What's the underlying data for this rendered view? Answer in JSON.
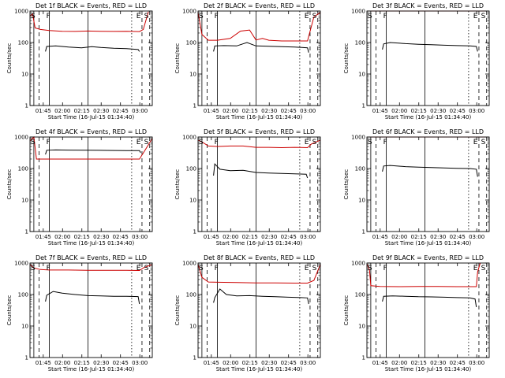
{
  "figure": {
    "ylabel": "Counts/sec",
    "xlabel": "Start Time (16-Jul-15 01:34:40)",
    "xticks": [
      "01:45",
      "02:00",
      "02:15",
      "02:30",
      "02:45",
      "03:00"
    ],
    "yticks": [
      "1",
      "10",
      "100",
      "1000"
    ],
    "marker_labels": [
      "S",
      "F",
      "E",
      "S"
    ],
    "colors": {
      "events": "#000000",
      "lld": "#cc0000",
      "axes": "#000000",
      "background": "#ffffff"
    }
  },
  "chart_data": [
    {
      "type": "line",
      "title": "Det 1f BLACK = Events, RED = LLD",
      "xlabel": "Start Time (16-Jul-15 01:34:40)",
      "ylabel": "Counts/sec",
      "xunit": "minutes after 01:34:40",
      "xlim": [
        0,
        95
      ],
      "ylim": [
        1,
        1000
      ],
      "yscale": "log",
      "series": [
        {
          "name": "Events",
          "color": "black",
          "points": [
            [
              12,
              52
            ],
            [
              13,
              75
            ],
            [
              20,
              78
            ],
            [
              30,
              72
            ],
            [
              40,
              68
            ],
            [
              48,
              74
            ],
            [
              55,
              70
            ],
            [
              65,
              66
            ],
            [
              75,
              64
            ],
            [
              84,
              60
            ],
            [
              85,
              52
            ]
          ]
        },
        {
          "name": "LLD",
          "color": "red",
          "points": [
            [
              0,
              700
            ],
            [
              2,
              800
            ],
            [
              4,
              290
            ],
            [
              8,
              260
            ],
            [
              15,
              240
            ],
            [
              25,
              228
            ],
            [
              35,
              225
            ],
            [
              45,
              232
            ],
            [
              55,
              228
            ],
            [
              65,
              225
            ],
            [
              75,
              228
            ],
            [
              85,
              222
            ],
            [
              88,
              260
            ],
            [
              92,
              950
            ]
          ]
        }
      ]
    },
    {
      "type": "line",
      "title": "Det 2f BLACK = Events, RED = LLD",
      "xlabel": "Start Time (16-Jul-15 01:34:40)",
      "ylabel": "Counts/sec",
      "xunit": "minutes after 01:34:40",
      "xlim": [
        0,
        95
      ],
      "ylim": [
        1,
        1000
      ],
      "yscale": "log",
      "series": [
        {
          "name": "Events",
          "color": "black",
          "points": [
            [
              12,
              52
            ],
            [
              13,
              78
            ],
            [
              20,
              80
            ],
            [
              30,
              78
            ],
            [
              38,
              100
            ],
            [
              45,
              78
            ],
            [
              55,
              76
            ],
            [
              65,
              74
            ],
            [
              75,
              72
            ],
            [
              85,
              68
            ],
            [
              86,
              48
            ]
          ]
        },
        {
          "name": "LLD",
          "color": "red",
          "points": [
            [
              0,
              900
            ],
            [
              3,
              180
            ],
            [
              8,
              118
            ],
            [
              15,
              118
            ],
            [
              25,
              135
            ],
            [
              33,
              230
            ],
            [
              40,
              250
            ],
            [
              45,
              120
            ],
            [
              50,
              135
            ],
            [
              55,
              118
            ],
            [
              65,
              112
            ],
            [
              75,
              112
            ],
            [
              85,
              112
            ],
            [
              90,
              650
            ],
            [
              95,
              900
            ]
          ]
        }
      ]
    },
    {
      "type": "line",
      "title": "Det 3f BLACK = Events, RED = LLD",
      "xlabel": "Start Time (16-Jul-15 01:34:40)",
      "ylabel": "Counts/sec",
      "xunit": "minutes after 01:34:40",
      "xlim": [
        0,
        95
      ],
      "ylim": [
        1,
        1000
      ],
      "yscale": "log",
      "series": [
        {
          "name": "Events",
          "color": "black",
          "points": [
            [
              12,
              60
            ],
            [
              13,
              90
            ],
            [
              18,
              100
            ],
            [
              30,
              92
            ],
            [
              40,
              88
            ],
            [
              50,
              85
            ],
            [
              60,
              82
            ],
            [
              70,
              80
            ],
            [
              80,
              78
            ],
            [
              85,
              75
            ],
            [
              86,
              52
            ]
          ]
        },
        {
          "name": "LLD",
          "color": "red",
          "points": [
            [
              0,
              1000
            ],
            [
              95,
              1000
            ]
          ]
        }
      ]
    },
    {
      "type": "line",
      "title": "Det 4f BLACK = Events, RED = LLD",
      "xlabel": "Start Time (16-Jul-15 01:34:40)",
      "ylabel": "Counts/sec",
      "xunit": "minutes after 01:34:40",
      "xlim": [
        0,
        95
      ],
      "ylim": [
        1,
        1000
      ],
      "yscale": "log",
      "series": [
        {
          "name": "Events",
          "color": "black",
          "points": [
            [
              12,
              280
            ],
            [
              13,
              380
            ],
            [
              20,
              390
            ],
            [
              30,
              385
            ],
            [
              45,
              380
            ],
            [
              60,
              375
            ],
            [
              75,
              372
            ],
            [
              85,
              370
            ],
            [
              86,
              320
            ]
          ]
        },
        {
          "name": "LLD",
          "color": "red",
          "points": [
            [
              0,
              750
            ],
            [
              3,
              1000
            ],
            [
              5,
              200
            ],
            [
              15,
              200
            ],
            [
              30,
              200
            ],
            [
              45,
              200
            ],
            [
              60,
              200
            ],
            [
              75,
              200
            ],
            [
              85,
              200
            ],
            [
              90,
              420
            ],
            [
              95,
              900
            ]
          ]
        }
      ]
    },
    {
      "type": "line",
      "title": "Det 5f BLACK = Events, RED = LLD",
      "xlabel": "Start Time (16-Jul-15 01:34:40)",
      "ylabel": "Counts/sec",
      "xunit": "minutes after 01:34:40",
      "xlim": [
        0,
        95
      ],
      "ylim": [
        1,
        1000
      ],
      "yscale": "log",
      "series": [
        {
          "name": "Events",
          "color": "black",
          "points": [
            [
              12,
              60
            ],
            [
              13,
              140
            ],
            [
              17,
              95
            ],
            [
              25,
              85
            ],
            [
              35,
              88
            ],
            [
              45,
              75
            ],
            [
              55,
              72
            ],
            [
              65,
              70
            ],
            [
              75,
              68
            ],
            [
              84,
              66
            ],
            [
              85,
              50
            ]
          ]
        },
        {
          "name": "LLD",
          "color": "red",
          "points": [
            [
              0,
              800
            ],
            [
              3,
              700
            ],
            [
              8,
              520
            ],
            [
              15,
              500
            ],
            [
              25,
              520
            ],
            [
              35,
              520
            ],
            [
              45,
              470
            ],
            [
              55,
              470
            ],
            [
              65,
              460
            ],
            [
              75,
              470
            ],
            [
              85,
              460
            ],
            [
              88,
              600
            ],
            [
              95,
              800
            ]
          ]
        }
      ]
    },
    {
      "type": "line",
      "title": "Det 6f BLACK = Events, RED = LLD",
      "xlabel": "Start Time (16-Jul-15 01:34:40)",
      "ylabel": "Counts/sec",
      "xunit": "minutes after 01:34:40",
      "xlim": [
        0,
        95
      ],
      "ylim": [
        1,
        1000
      ],
      "yscale": "log",
      "series": [
        {
          "name": "Events",
          "color": "black",
          "points": [
            [
              12,
              80
            ],
            [
              13,
              120
            ],
            [
              18,
              125
            ],
            [
              30,
              115
            ],
            [
              40,
              110
            ],
            [
              50,
              108
            ],
            [
              60,
              105
            ],
            [
              70,
              102
            ],
            [
              80,
              100
            ],
            [
              85,
              95
            ],
            [
              86,
              55
            ]
          ]
        },
        {
          "name": "LLD",
          "color": "red",
          "points": [
            [
              0,
              1000
            ],
            [
              95,
              1000
            ]
          ]
        }
      ]
    },
    {
      "type": "line",
      "title": "Det 7f BLACK = Events, RED = LLD",
      "xlabel": "Start Time (16-Jul-15 01:34:40)",
      "ylabel": "Counts/sec",
      "xunit": "minutes after 01:34:40",
      "xlim": [
        0,
        95
      ],
      "ylim": [
        1,
        1000
      ],
      "yscale": "log",
      "series": [
        {
          "name": "Events",
          "color": "black",
          "points": [
            [
              12,
              60
            ],
            [
              13,
              95
            ],
            [
              18,
              125
            ],
            [
              25,
              110
            ],
            [
              35,
              100
            ],
            [
              45,
              92
            ],
            [
              55,
              90
            ],
            [
              65,
              88
            ],
            [
              75,
              88
            ],
            [
              84,
              86
            ],
            [
              85,
              50
            ]
          ]
        },
        {
          "name": "LLD",
          "color": "red",
          "points": [
            [
              0,
              900
            ],
            [
              3,
              700
            ],
            [
              8,
              620
            ],
            [
              15,
              600
            ],
            [
              30,
              600
            ],
            [
              45,
              590
            ],
            [
              60,
              590
            ],
            [
              75,
              585
            ],
            [
              85,
              580
            ],
            [
              88,
              700
            ],
            [
              95,
              900
            ]
          ]
        }
      ]
    },
    {
      "type": "line",
      "title": "Det 8f BLACK = Events, RED = LLD",
      "xlabel": "Start Time (16-Jul-15 01:34:40)",
      "ylabel": "Counts/sec",
      "xunit": "minutes after 01:34:40",
      "xlim": [
        0,
        95
      ],
      "ylim": [
        1,
        1000
      ],
      "yscale": "log",
      "series": [
        {
          "name": "Events",
          "color": "black",
          "points": [
            [
              12,
              55
            ],
            [
              13,
              80
            ],
            [
              17,
              150
            ],
            [
              22,
              100
            ],
            [
              30,
              90
            ],
            [
              40,
              92
            ],
            [
              50,
              88
            ],
            [
              60,
              85
            ],
            [
              70,
              82
            ],
            [
              80,
              80
            ],
            [
              85,
              78
            ],
            [
              86,
              50
            ]
          ]
        },
        {
          "name": "LLD",
          "color": "red",
          "points": [
            [
              0,
              900
            ],
            [
              3,
              350
            ],
            [
              8,
              250
            ],
            [
              15,
              245
            ],
            [
              30,
              240
            ],
            [
              45,
              235
            ],
            [
              60,
              235
            ],
            [
              75,
              230
            ],
            [
              85,
              230
            ],
            [
              90,
              280
            ],
            [
              95,
              900
            ]
          ]
        }
      ]
    },
    {
      "type": "line",
      "title": "Det 9f BLACK = Events, RED = LLD",
      "xlabel": "Start Time (16-Jul-15 01:34:40)",
      "ylabel": "Counts/sec",
      "xunit": "minutes after 01:34:40",
      "xlim": [
        0,
        95
      ],
      "ylim": [
        1,
        1000
      ],
      "yscale": "log",
      "series": [
        {
          "name": "Events",
          "color": "black",
          "points": [
            [
              12,
              60
            ],
            [
              13,
              88
            ],
            [
              20,
              90
            ],
            [
              30,
              88
            ],
            [
              40,
              85
            ],
            [
              50,
              84
            ],
            [
              60,
              82
            ],
            [
              70,
              80
            ],
            [
              80,
              78
            ],
            [
              84,
              72
            ],
            [
              85,
              40
            ]
          ]
        },
        {
          "name": "LLD",
          "color": "red",
          "points": [
            [
              0,
              950
            ],
            [
              2,
              600
            ],
            [
              3,
              190
            ],
            [
              10,
              180
            ],
            [
              25,
              178
            ],
            [
              40,
              180
            ],
            [
              55,
              180
            ],
            [
              70,
              178
            ],
            [
              85,
              178
            ],
            [
              86,
              520
            ],
            [
              88,
              1000
            ]
          ]
        }
      ]
    }
  ]
}
